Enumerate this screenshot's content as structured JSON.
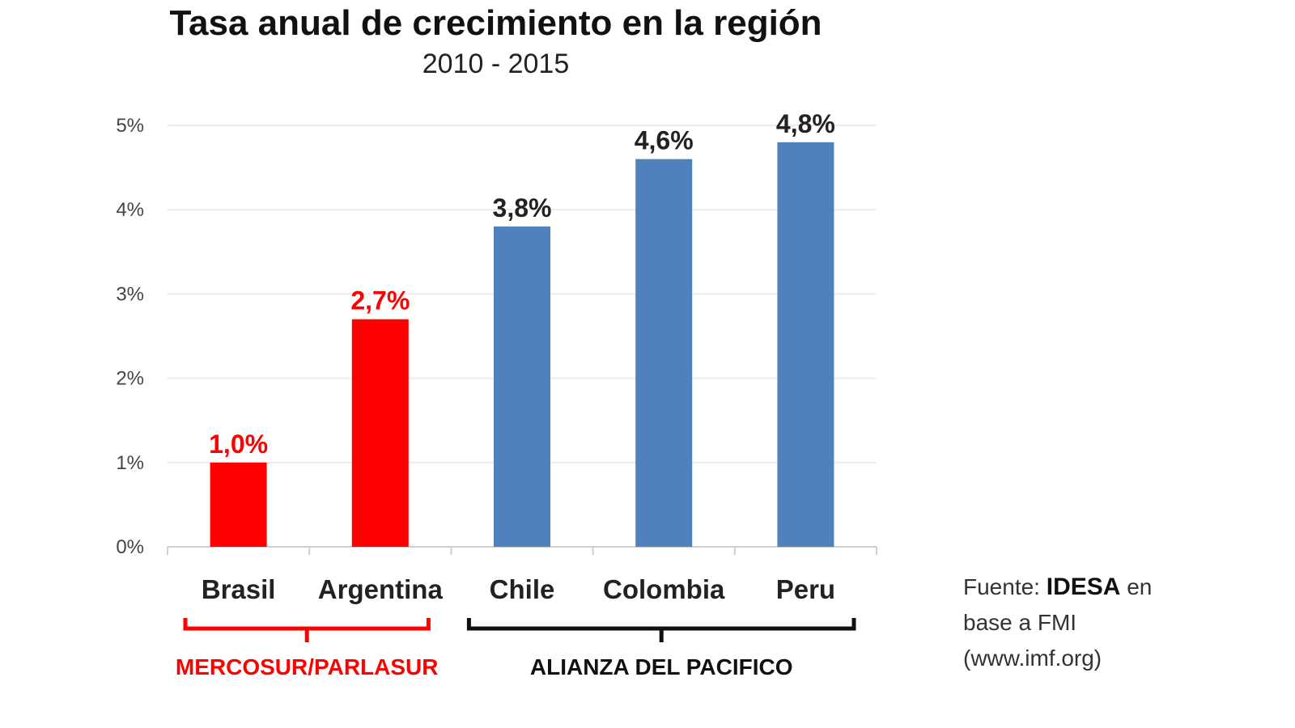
{
  "chart_data": {
    "type": "bar",
    "title": "Tasa anual de crecimiento en la región",
    "subtitle": "2010 - 2015",
    "categories": [
      "Brasil",
      "Argentina",
      "Chile",
      "Colombia",
      "Peru"
    ],
    "values": [
      1.0,
      2.7,
      3.8,
      4.6,
      4.8
    ],
    "data_labels": [
      "1,0%",
      "2,7%",
      "3,8%",
      "4,6%",
      "4,8%"
    ],
    "bar_colors": [
      "#ff0000",
      "#ff0000",
      "#4f81bd",
      "#4f81bd",
      "#4f81bd"
    ],
    "label_colors": [
      "#ff0000",
      "#ff0000",
      "#222222",
      "#222222",
      "#222222"
    ],
    "ylim": [
      0,
      5
    ],
    "yticks": [
      0,
      1,
      2,
      3,
      4,
      5
    ],
    "ytick_labels": [
      "0%",
      "1%",
      "2%",
      "3%",
      "4%",
      "5%"
    ],
    "xlabel": "",
    "ylabel": "",
    "grid": true,
    "groups": [
      {
        "label": "MERCOSUR/PARLASUR",
        "from": 0,
        "to": 1,
        "color": "#ff0000"
      },
      {
        "label": "ALIANZA DEL PACIFICO",
        "from": 2,
        "to": 4,
        "color": "#111111"
      }
    ]
  },
  "source": {
    "prefix": "Fuente: ",
    "org": "IDESA",
    "suffix": " en",
    "line2": "base a FMI",
    "line3": "(www.imf.org)"
  }
}
